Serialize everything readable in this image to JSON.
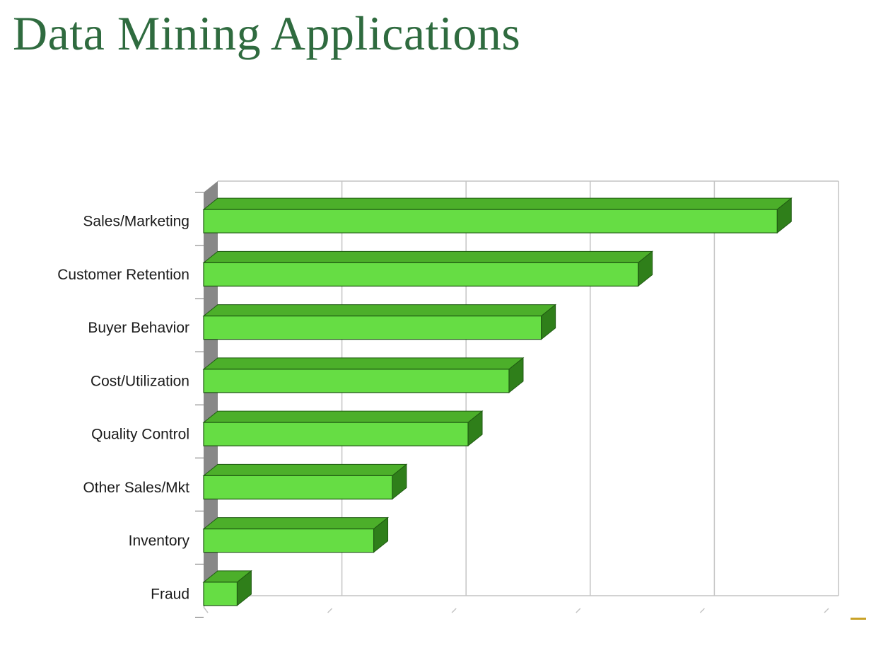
{
  "slide": {
    "title": "Data Mining Applications"
  },
  "colors": {
    "title": "#2f6b3f",
    "bar_front": "#66dd44",
    "bar_top": "#4caf2a",
    "bar_side": "#2f7f1a",
    "bar_outline": "#1f5a12",
    "gridline": "#c4c4c4",
    "wall": "#888888",
    "accent_mark": "#c9a227"
  },
  "chart_data": {
    "type": "bar",
    "orientation": "horizontal",
    "three_d": true,
    "categories": [
      "Sales/Marketing",
      "Customer Retention",
      "Buyer Behavior",
      "Cost/Utilization",
      "Quality Control",
      "Other Sales/Mkt",
      "Inventory",
      "Fraud"
    ],
    "values": [
      4.62,
      3.5,
      2.72,
      2.46,
      2.13,
      1.52,
      1.37,
      0.27
    ],
    "xlim": [
      0,
      5
    ],
    "grid": true,
    "x_tick_labels_shown": false,
    "legend": "none"
  }
}
